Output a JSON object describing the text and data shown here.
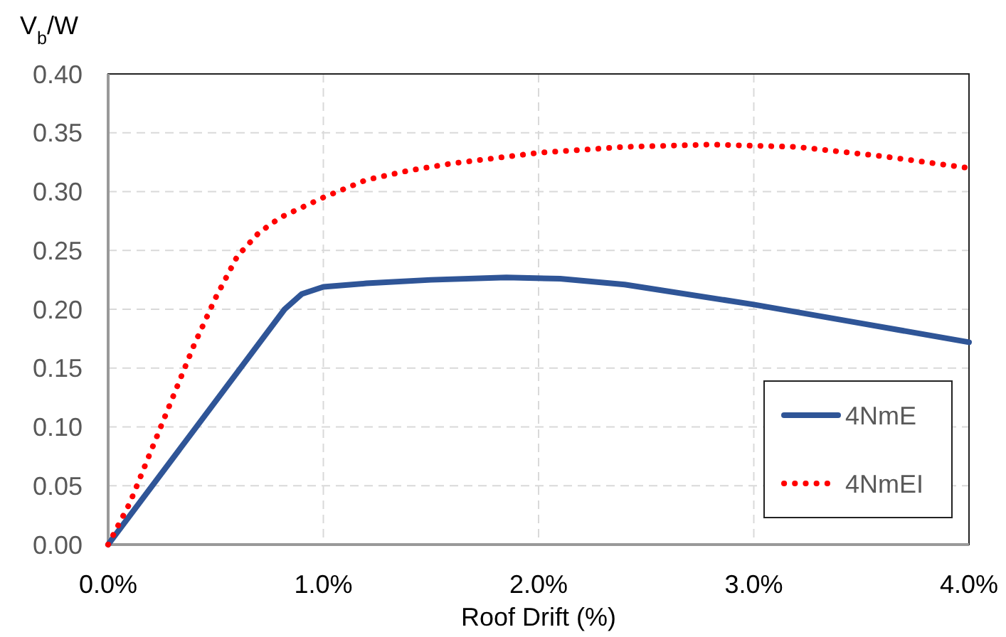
{
  "chart_data": {
    "type": "line",
    "ylabel": "V$_{b}$/W",
    "xlabel": "Roof Drift (%)",
    "xlim": [
      0,
      4
    ],
    "xticks": [
      {
        "value": 0,
        "label": "0.0%"
      },
      {
        "value": 1,
        "label": "1.0%"
      },
      {
        "value": 2,
        "label": "2.0%"
      },
      {
        "value": 3,
        "label": "3.0%"
      },
      {
        "value": 4,
        "label": "4.0%"
      }
    ],
    "ylim": [
      0,
      0.4
    ],
    "yticks": [
      {
        "value": 0,
        "label": "0.00"
      },
      {
        "value": 0.05,
        "label": "0.05"
      },
      {
        "value": 0.1,
        "label": "0.10"
      },
      {
        "value": 0.15,
        "label": "0.15"
      },
      {
        "value": 0.2,
        "label": "0.20"
      },
      {
        "value": 0.25,
        "label": "0.25"
      },
      {
        "value": 0.3,
        "label": "0.30"
      },
      {
        "value": 0.35,
        "label": "0.35"
      },
      {
        "value": 0.4,
        "label": "0.40"
      }
    ],
    "grid": true,
    "legend": "bottom right",
    "series": [
      {
        "name": "4NmE",
        "color": "#2f5597",
        "line_style": "solid",
        "x": [
          0,
          0.82,
          0.9,
          1.0,
          1.2,
          1.5,
          1.85,
          2.1,
          2.4,
          3.0,
          3.5,
          4.0
        ],
        "values": [
          0,
          0.2,
          0.213,
          0.219,
          0.222,
          0.225,
          0.227,
          0.226,
          0.221,
          0.204,
          0.188,
          0.172
        ]
      },
      {
        "name": "4NmEI",
        "color": "#ff0000",
        "line_style": "dotted",
        "x": [
          0,
          0.1,
          0.2,
          0.3,
          0.4,
          0.5,
          0.6,
          0.7,
          0.8,
          1.0,
          1.2,
          1.4,
          1.6,
          2.0,
          2.4,
          2.8,
          3.2,
          3.6,
          4.0
        ],
        "values": [
          0,
          0.035,
          0.08,
          0.125,
          0.17,
          0.21,
          0.245,
          0.265,
          0.278,
          0.295,
          0.31,
          0.318,
          0.324,
          0.333,
          0.338,
          0.34,
          0.338,
          0.33,
          0.32
        ]
      }
    ]
  }
}
